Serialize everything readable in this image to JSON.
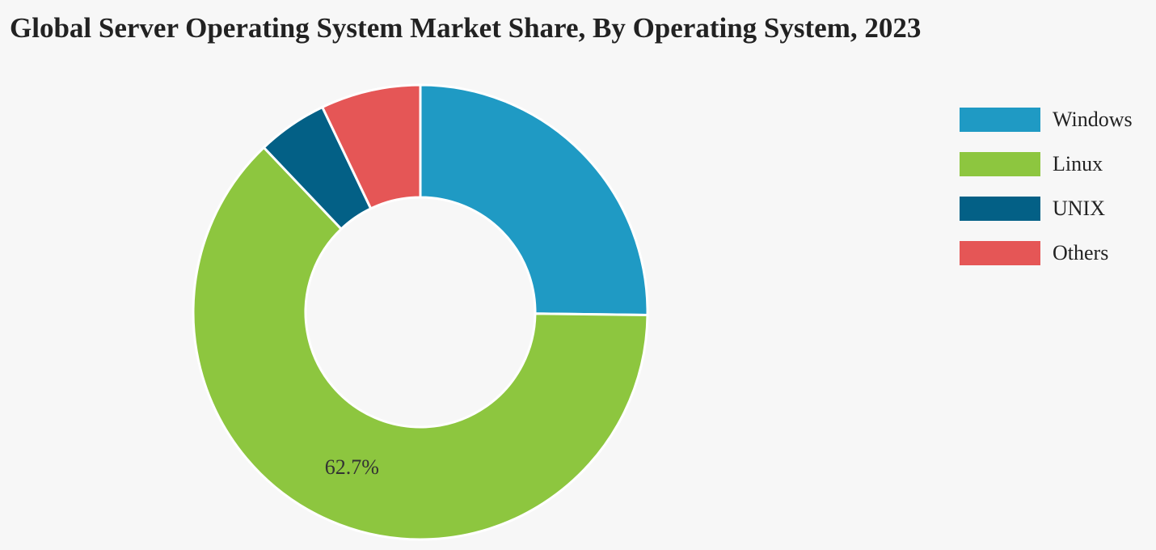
{
  "chart_data": {
    "type": "pie",
    "title": "Global Server Operating System Market Share, By Operating System, 2023",
    "categories": [
      "Windows",
      "Linux",
      "UNIX",
      "Others"
    ],
    "values": [
      25.2,
      62.7,
      5.0,
      7.1
    ],
    "colors": [
      "#1f9ac4",
      "#8dc63f",
      "#036086",
      "#e55656"
    ],
    "data_labels": [
      {
        "category": "Linux",
        "text": "62.7%"
      }
    ],
    "legend_position": "top-right",
    "hole": "donut"
  }
}
